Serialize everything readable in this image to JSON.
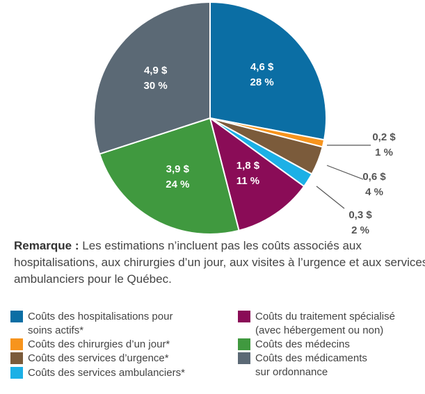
{
  "chart_data": {
    "type": "pie",
    "categories": [
      "Coûts des hospitalisations pour soins actifs*",
      "Coûts des chirurgies d’un jour*",
      "Coûts des services d’urgence*",
      "Coûts des services ambulanciers*",
      "Coûts du traitement spécialisé (avec hébergement ou non)",
      "Coûts des médecins",
      "Coûts des médicaments sur ordonnance"
    ],
    "values": [
      28,
      1,
      4,
      2,
      11,
      24,
      30
    ],
    "value_labels": [
      "28 %",
      "1 %",
      "4 %",
      "2 %",
      "11 %",
      "24 %",
      "30 %"
    ],
    "amounts": [
      4.6,
      0.2,
      0.6,
      0.3,
      1.8,
      3.9,
      4.9
    ],
    "amount_labels": [
      "4,6 $",
      "0,2 $",
      "0,6 $",
      "0,3 $",
      "1,8 $",
      "3,9 $",
      "4,9 $"
    ],
    "colors": [
      "#0b6ea4",
      "#f7941d",
      "#7b5b3b",
      "#1cb0e6",
      "#8a0c57",
      "#40993f",
      "#5b6975"
    ],
    "note_label": "Remarque :",
    "note": "Les estimations n’incluent pas les coûts associés aux hospitalisations, aux chirurgies d’un jour, aux visites à l’urgence et aux services ambulanciers pour le Québec."
  }
}
